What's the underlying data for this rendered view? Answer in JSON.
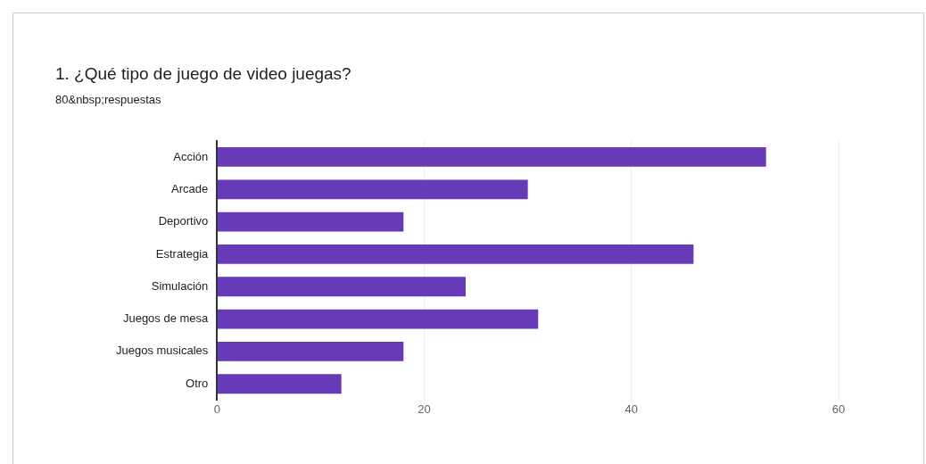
{
  "chart_data": {
    "type": "bar",
    "orientation": "horizontal",
    "title": "1. ¿Qué tipo de juego de video juegas?",
    "subtitle": "80&nbsp;respuestas",
    "categories": [
      "Acción",
      "Arcade",
      "Deportivo",
      "Estrategia",
      "Simulación",
      "Juegos de mesa",
      "Juegos musicales",
      "Otro"
    ],
    "values": [
      53,
      30,
      18,
      46,
      24,
      31,
      18,
      12
    ],
    "color": "#673ab7",
    "xlim": [
      0,
      60
    ],
    "xticks": [
      0,
      20,
      40,
      60
    ],
    "grid": "x",
    "legend": false
  }
}
